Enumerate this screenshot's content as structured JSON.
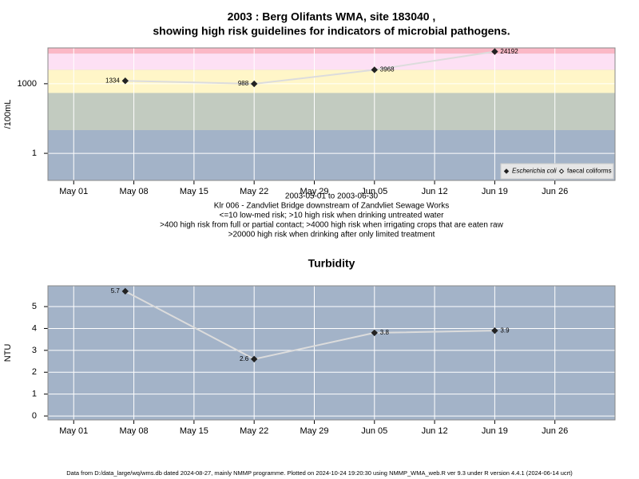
{
  "chart_data": [
    {
      "type": "line",
      "title": [
        "2003 : Berg Olifants WMA, site 183040 ,",
        "showing high risk guidelines for indicators of microbial pathogens."
      ],
      "ylabel": "/100mL",
      "notes": [
        "2003-05-01 to 2003-06-30",
        "Klr 006 - Zandvliet Bridge downstream of Zandvliet Sewage Works",
        "<=10 low-med risk; >10 high risk when drinking untreated water",
        ">400 high risk from full or partial contact; >4000 high risk when irrigating crops that are eaten raw",
        ">20000 high risk when drinking after only limited treatment"
      ],
      "log_y": true,
      "grid": true,
      "legend": "bottom right",
      "background": "#a3b3c8",
      "bands": [
        {
          "from": 10,
          "to": 400,
          "color": "#c2cbc0"
        },
        {
          "from": 400,
          "to": 4000,
          "color": "#fff6c8"
        },
        {
          "from": 4000,
          "to": 20000,
          "color": "#fde0f4"
        },
        {
          "from": 20000,
          "to": 35000,
          "color": "#fbb8c6"
        }
      ],
      "x": [
        "2003-05-07",
        "2003-05-22",
        "2003-06-05",
        "2003-06-19"
      ],
      "xlim": [
        "2003-04-28",
        "2003-07-03"
      ],
      "xticks": [
        {
          "value": "2003-05-01",
          "label": "May 01"
        },
        {
          "value": "2003-05-08",
          "label": "May 08"
        },
        {
          "value": "2003-05-15",
          "label": "May 15"
        },
        {
          "value": "2003-05-22",
          "label": "May 22"
        },
        {
          "value": "2003-05-29",
          "label": "May 29"
        },
        {
          "value": "2003-06-05",
          "label": "Jun 05"
        },
        {
          "value": "2003-06-12",
          "label": "Jun 12"
        },
        {
          "value": "2003-06-19",
          "label": "Jun 19"
        },
        {
          "value": "2003-06-26",
          "label": "Jun 26"
        }
      ],
      "ylim": [
        0.068,
        35000
      ],
      "yticks": [
        1,
        1000
      ],
      "series": [
        {
          "name": "Escherichia coli",
          "color": "#dcdcdc",
          "values": [
            1334,
            988,
            3968,
            24192
          ]
        },
        {
          "name": "faecal coliforms",
          "color": "#dcdcdc",
          "values": [
            null,
            null,
            null,
            null
          ]
        }
      ]
    },
    {
      "type": "line",
      "title": "Turbidity",
      "ylabel": "NTU",
      "grid": true,
      "background": "#a3b3c8",
      "x": [
        "2003-05-07",
        "2003-05-22",
        "2003-06-05",
        "2003-06-19"
      ],
      "xlim": [
        "2003-04-28",
        "2003-07-03"
      ],
      "xticks": [
        {
          "value": "2003-05-01",
          "label": "May 01"
        },
        {
          "value": "2003-05-08",
          "label": "May 08"
        },
        {
          "value": "2003-05-15",
          "label": "May 15"
        },
        {
          "value": "2003-05-22",
          "label": "May 22"
        },
        {
          "value": "2003-05-29",
          "label": "May 29"
        },
        {
          "value": "2003-06-05",
          "label": "Jun 05"
        },
        {
          "value": "2003-06-12",
          "label": "Jun 12"
        },
        {
          "value": "2003-06-19",
          "label": "Jun 19"
        },
        {
          "value": "2003-06-26",
          "label": "Jun 26"
        }
      ],
      "ylim": [
        -0.18,
        5.95
      ],
      "yticks": [
        0,
        1,
        2,
        3,
        4,
        5
      ],
      "series": [
        {
          "name": "Turbidity",
          "color": "#dcdcdc",
          "values": [
            5.7,
            2.6,
            3.8,
            3.9
          ]
        }
      ]
    }
  ],
  "footer": "Data from D:/data_large/wq/wms.db dated 2024-08-27, mainly NMMP programme. Plotted on 2024-10-24 19:20:30 using NMMP_WMA_web.R ver 9.3 under R version 4.4.1 (2024-06-14 ucrt)"
}
